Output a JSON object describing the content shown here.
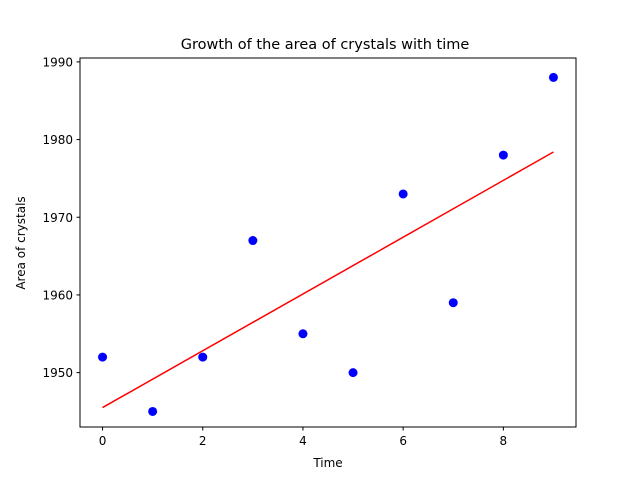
{
  "chart_data": {
    "type": "scatter",
    "title": "Growth of the area of crystals with time",
    "xlabel": "Time",
    "ylabel": "Area of crystals",
    "xlim": [
      -0.45,
      9.45
    ],
    "ylim": [
      1943.0,
      1990.5
    ],
    "xticks": [
      0,
      2,
      4,
      6,
      8
    ],
    "yticks": [
      1950,
      1960,
      1970,
      1980,
      1990
    ],
    "grid": false,
    "legend": "none",
    "series": [
      {
        "kind": "scatter",
        "color": "#0000ff",
        "x": [
          0,
          1,
          2,
          3,
          4,
          5,
          6,
          7,
          8,
          9
        ],
        "y": [
          1952,
          1945,
          1952,
          1967,
          1955,
          1950,
          1973,
          1959,
          1978,
          1988
        ]
      },
      {
        "kind": "line",
        "color": "#ff0000",
        "x": [
          0,
          9
        ],
        "y": [
          1945.5,
          1978.4
        ]
      }
    ]
  }
}
